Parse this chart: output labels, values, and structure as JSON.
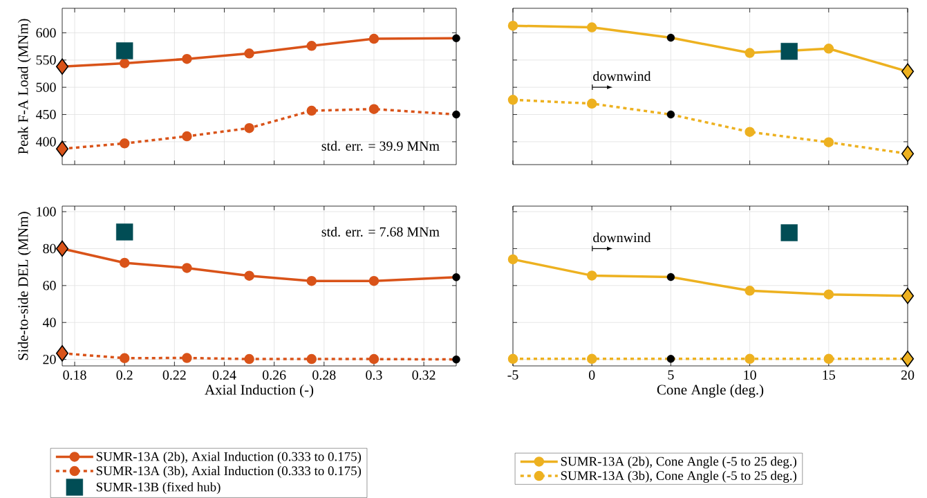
{
  "chart_data": [
    {
      "type": "line",
      "ylabel": "Peak F-A Load (MNm)",
      "x": [
        0.175,
        0.2,
        0.225,
        0.25,
        0.275,
        0.3,
        0.333
      ],
      "xlim": [
        0.175,
        0.333
      ],
      "ylim": [
        358,
        645
      ],
      "xticks": [
        0.18,
        0.2,
        0.22,
        0.24,
        0.26,
        0.28,
        0.3,
        0.32
      ],
      "yticks": [
        400,
        450,
        500,
        550,
        600
      ],
      "grid": true,
      "tick_labels": "y",
      "annotations": [
        "std. err. = 39.9 MNm"
      ],
      "series": [
        {
          "color": "#d95319",
          "marker": "circle",
          "line_style": "solid",
          "values": [
            538,
            544,
            552,
            562,
            576,
            589,
            590
          ]
        },
        {
          "color": "#d95319",
          "marker": "circle",
          "line_style": "dotted",
          "values": [
            387,
            397,
            410,
            425,
            457,
            460,
            450
          ]
        },
        {
          "type": "scatter",
          "color": "#014d55",
          "marker": "square",
          "x": [
            0.2
          ],
          "values": [
            567
          ]
        },
        {
          "type": "scatter",
          "color": "#d95319",
          "marker": "diamond",
          "x": [
            0.175,
            0.175
          ],
          "values": [
            538,
            387
          ]
        },
        {
          "type": "scatter",
          "color": "#000000",
          "marker": "circle",
          "x": [
            0.333,
            0.333
          ],
          "values": [
            590,
            450
          ]
        }
      ]
    },
    {
      "type": "line",
      "x": [
        -5,
        0,
        5,
        10,
        15,
        20
      ],
      "xlim": [
        -5,
        20
      ],
      "ylim": [
        358,
        645
      ],
      "xticks": [
        -5,
        0,
        5,
        10,
        15,
        20
      ],
      "yticks": [
        400,
        450,
        500,
        550,
        600
      ],
      "grid": true,
      "tick_labels": false,
      "annotations": [
        "downwind"
      ],
      "series": [
        {
          "color": "#edb120",
          "marker": "circle",
          "line_style": "solid",
          "values": [
            613,
            610,
            591,
            563,
            571,
            529
          ]
        },
        {
          "color": "#edb120",
          "marker": "circle",
          "line_style": "dotted",
          "values": [
            477,
            470,
            450,
            418,
            399,
            378
          ]
        },
        {
          "type": "scatter",
          "color": "#014d55",
          "marker": "square",
          "x": [
            12.5
          ],
          "values": [
            566
          ]
        },
        {
          "type": "scatter",
          "color": "#edb120",
          "marker": "diamond",
          "x": [
            20,
            20
          ],
          "values": [
            529,
            378
          ]
        },
        {
          "type": "scatter",
          "color": "#000000",
          "marker": "circle",
          "x": [
            5,
            5
          ],
          "values": [
            591,
            450
          ]
        }
      ]
    },
    {
      "type": "line",
      "xlabel": "Axial Induction (-)",
      "ylabel": "Side-to-side DEL (MNm)",
      "x": [
        0.175,
        0.2,
        0.225,
        0.25,
        0.275,
        0.3,
        0.333
      ],
      "xlim": [
        0.175,
        0.333
      ],
      "ylim": [
        16.5,
        103
      ],
      "xticks": [
        0.18,
        0.2,
        0.22,
        0.24,
        0.26,
        0.28,
        0.3,
        0.32
      ],
      "yticks": [
        20,
        40,
        60,
        80,
        100
      ],
      "grid": true,
      "legend": "bottom",
      "annotations": [
        "std. err. = 7.68 MNm"
      ],
      "series": [
        {
          "name": "SUMR-13A (2b), Axial Induction (0.333 to 0.175)",
          "color": "#d95319",
          "marker": "circle",
          "line_style": "solid",
          "values": [
            80,
            72.3,
            69.5,
            65.3,
            62.5,
            62.5,
            64.5
          ]
        },
        {
          "name": "SUMR-13A (3b), Axial Induction (0.333 to 0.175)",
          "color": "#d95319",
          "marker": "circle",
          "line_style": "dotted",
          "values": [
            23.3,
            20.7,
            20.8,
            20.2,
            20.2,
            20.2,
            20
          ]
        },
        {
          "name": "SUMR-13B (fixed hub)",
          "type": "scatter",
          "color": "#014d55",
          "marker": "square",
          "x": [
            0.2
          ],
          "values": [
            89
          ]
        },
        {
          "type": "scatter",
          "color": "#d95319",
          "marker": "diamond",
          "x": [
            0.175,
            0.175
          ],
          "values": [
            80,
            23.3
          ]
        },
        {
          "type": "scatter",
          "color": "#000000",
          "marker": "circle",
          "x": [
            0.333,
            0.333
          ],
          "values": [
            64.5,
            20
          ]
        }
      ]
    },
    {
      "type": "line",
      "xlabel": "Cone Angle (deg.)",
      "x": [
        -5,
        0,
        5,
        10,
        15,
        20
      ],
      "xlim": [
        -5,
        20
      ],
      "ylim": [
        16.5,
        103
      ],
      "xticks": [
        -5,
        0,
        5,
        10,
        15,
        20
      ],
      "yticks": [
        20,
        40,
        60,
        80,
        100
      ],
      "grid": true,
      "tick_labels": "x",
      "legend": "bottom",
      "annotations": [
        "downwind"
      ],
      "series": [
        {
          "name": "SUMR-13A (2b), Cone Angle (-5 to 25 deg.)",
          "color": "#edb120",
          "marker": "circle",
          "line_style": "solid",
          "values": [
            74.2,
            65.4,
            64.6,
            57.2,
            55.2,
            54.4
          ]
        },
        {
          "name": "SUMR-13A (3b), Cone Angle (-5 to 25 deg.)",
          "color": "#edb120",
          "marker": "circle",
          "line_style": "dotted",
          "values": [
            20.3,
            20.3,
            20.3,
            20.3,
            20.3,
            20.3
          ]
        },
        {
          "type": "scatter",
          "color": "#014d55",
          "marker": "square",
          "x": [
            12.5
          ],
          "values": [
            88.6
          ]
        },
        {
          "type": "scatter",
          "color": "#edb120",
          "marker": "diamond",
          "x": [
            20,
            20
          ],
          "values": [
            54.4,
            20.3
          ]
        },
        {
          "type": "scatter",
          "color": "#000000",
          "marker": "circle",
          "x": [
            5,
            5
          ],
          "values": [
            64.6,
            20.3
          ]
        }
      ]
    }
  ]
}
